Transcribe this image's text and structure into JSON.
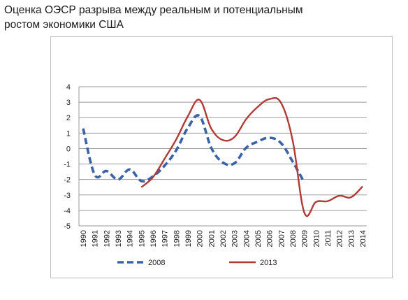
{
  "title_line1": "Оценка ОЭСР разрыва между реальным и потенциальным",
  "title_line2": "ростом экономики США",
  "chart_data": {
    "type": "line",
    "x": [
      "1990",
      "1991",
      "1992",
      "1993",
      "1994",
      "1995",
      "1996",
      "1997",
      "1998",
      "1999",
      "2000",
      "2001",
      "2002",
      "2003",
      "2004",
      "2005",
      "2006",
      "2007",
      "2008",
      "2009",
      "2010",
      "2011",
      "2012",
      "2013",
      "2014"
    ],
    "ylim": [
      -5,
      4
    ],
    "yticks": [
      4,
      3,
      2,
      1,
      0,
      -1,
      -2,
      -3,
      -4,
      -5
    ],
    "grid": true,
    "legend_position": "bottom",
    "series": [
      {
        "name": "2008",
        "color": "#3a62a7",
        "style": "dashed",
        "values": [
          1.3,
          -1.7,
          -1.45,
          -2.0,
          -1.35,
          -2.1,
          -1.8,
          -1.1,
          -0.1,
          1.35,
          2.1,
          0.05,
          -0.9,
          -0.95,
          0.05,
          0.45,
          0.7,
          0.35,
          -0.85,
          -2.2,
          null,
          null,
          null,
          null,
          null
        ]
      },
      {
        "name": "2013",
        "color": "#b03a35",
        "style": "solid",
        "values": [
          null,
          null,
          null,
          null,
          null,
          -2.5,
          -1.85,
          -0.65,
          0.6,
          2.1,
          3.15,
          1.3,
          0.55,
          0.75,
          1.9,
          2.7,
          3.2,
          2.95,
          0.5,
          -4.15,
          -3.45,
          -3.4,
          -3.05,
          -3.15,
          -2.45
        ]
      }
    ]
  }
}
